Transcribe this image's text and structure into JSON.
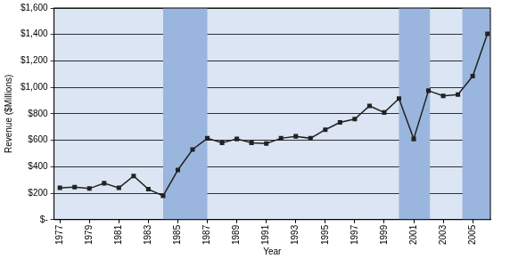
{
  "chart_data": {
    "type": "line",
    "x_label": "Year",
    "y_label": "Revenue ($Millions)",
    "x": [
      1977,
      1978,
      1979,
      1980,
      1981,
      1982,
      1983,
      1984,
      1985,
      1986,
      1987,
      1988,
      1989,
      1990,
      1991,
      1992,
      1993,
      1994,
      1995,
      1996,
      1997,
      1998,
      1999,
      2000,
      2001,
      2002,
      2003,
      2004,
      2005,
      2006
    ],
    "values": [
      240,
      245,
      235,
      275,
      240,
      330,
      230,
      180,
      375,
      530,
      615,
      580,
      610,
      580,
      575,
      615,
      630,
      615,
      680,
      735,
      760,
      860,
      810,
      915,
      610,
      975,
      935,
      945,
      1085,
      1405
    ],
    "color": "#222222",
    "marker": "square",
    "xlim": [
      1976.6,
      2006.2
    ],
    "xticks": [
      1977,
      1979,
      1981,
      1983,
      1985,
      1987,
      1989,
      1991,
      1993,
      1995,
      1997,
      1999,
      2001,
      2003,
      2005
    ],
    "ylim": [
      0,
      1600
    ],
    "yticks": [
      {
        "value": 0,
        "label": "$-"
      },
      {
        "value": 200,
        "label": "$200"
      },
      {
        "value": 400,
        "label": "$400"
      },
      {
        "value": 600,
        "label": "$600"
      },
      {
        "value": 800,
        "label": "$800"
      },
      {
        "value": 1000,
        "label": "$1,000"
      },
      {
        "value": 1200,
        "label": "$1,200"
      },
      {
        "value": 1400,
        "label": "$1,400"
      },
      {
        "value": 1600,
        "label": "$1,600"
      }
    ],
    "grid": true,
    "shaded_periods": [
      [
        1984,
        1987
      ],
      [
        2000,
        2002.1
      ],
      [
        2004.3,
        2006.2
      ]
    ]
  }
}
